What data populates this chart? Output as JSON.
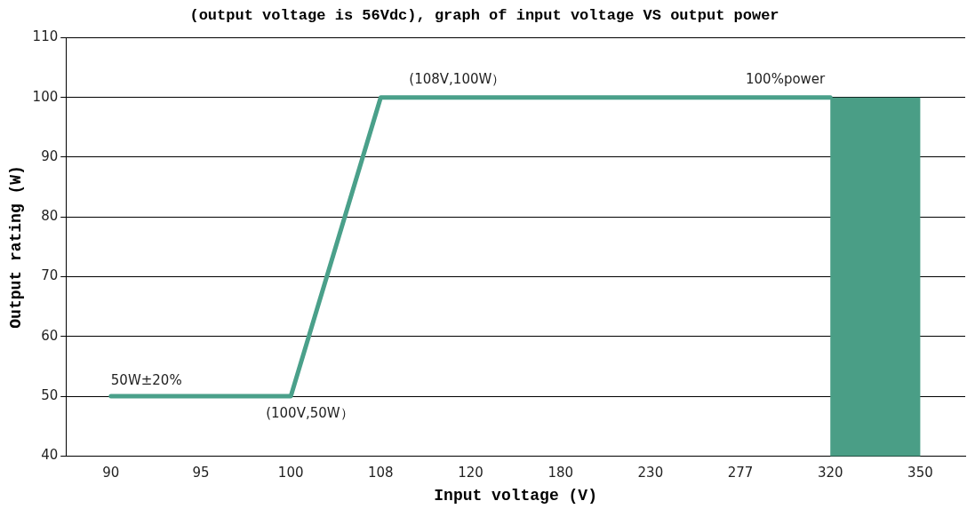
{
  "chart_data": {
    "type": "line",
    "title": "(output voltage is 56Vdc), graph of input voltage VS output power",
    "xlabel": "Input voltage (V)",
    "ylabel": "Output rating (W)",
    "categories": [
      "90",
      "95",
      "100",
      "108",
      "120",
      "180",
      "230",
      "277",
      "320",
      "350"
    ],
    "series": [
      {
        "color": "#4aa08a",
        "values": [
          50,
          50,
          50,
          100,
          100,
          100,
          100,
          100,
          100,
          null
        ]
      }
    ],
    "bands": [
      {
        "axis": "x",
        "from": "320",
        "to": "350",
        "color": "#4a9e86"
      }
    ],
    "ylim": [
      40,
      110
    ],
    "yticks": [
      40,
      50,
      60,
      70,
      80,
      90,
      100,
      110
    ],
    "grid": "y",
    "legend": false,
    "marker": "none",
    "line_style": "solid",
    "annotations": [
      "50W±20%",
      "100%power",
      {
        "text": "(108V,100W）",
        "x": "108",
        "y": 100
      },
      {
        "text": "(100V,50W）",
        "x": "100",
        "y": 50
      }
    ]
  }
}
